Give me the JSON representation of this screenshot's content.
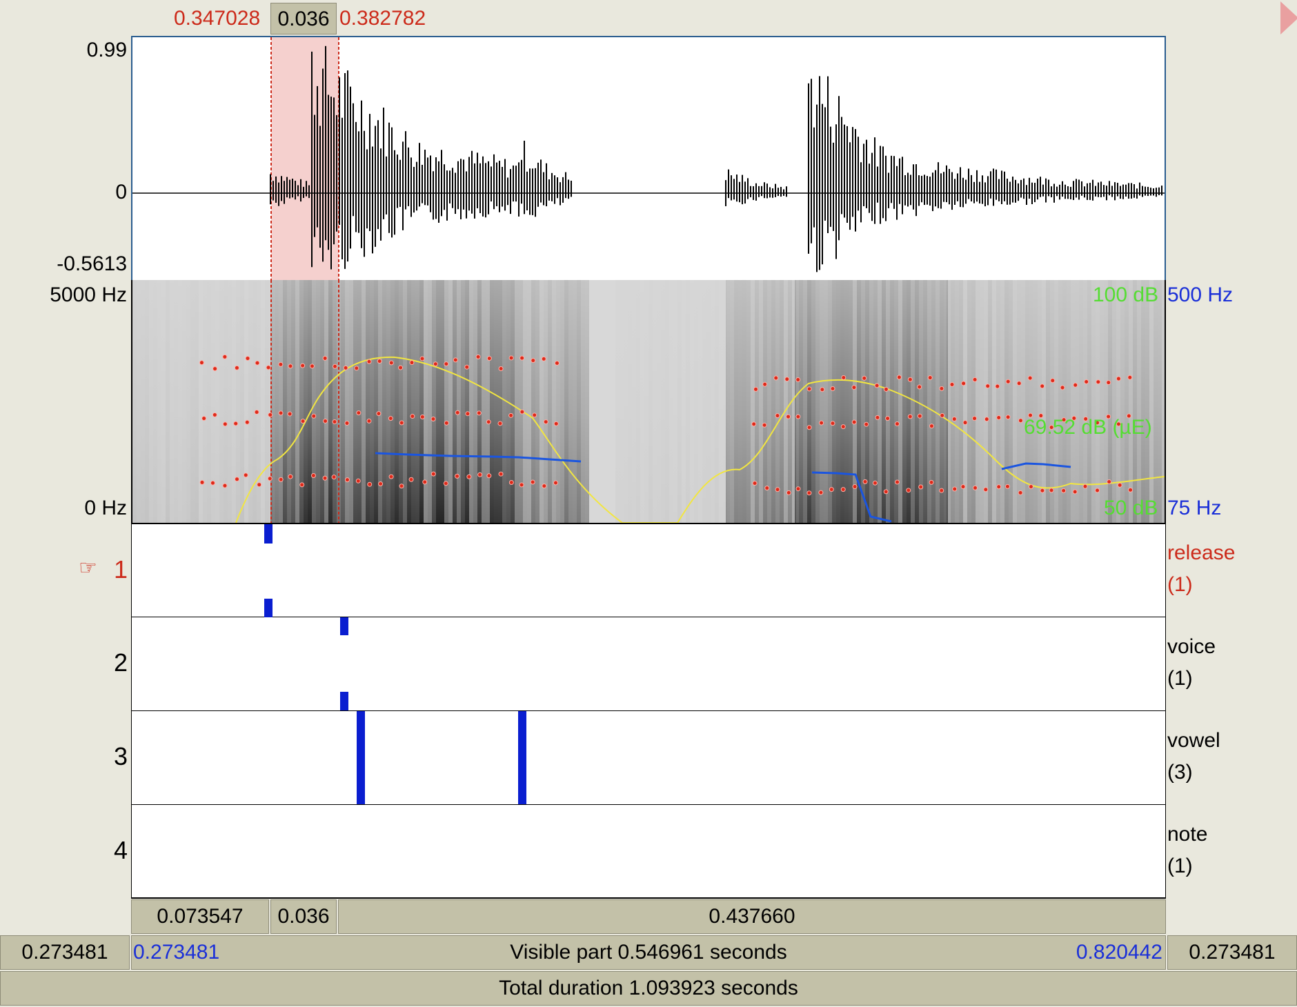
{
  "selection": {
    "start": "0.347028",
    "duration": "0.036",
    "end": "0.382782"
  },
  "waveform": {
    "max_label": "0.99",
    "zero_label": "0",
    "min_label": "-0.5613"
  },
  "spectrogram": {
    "freq_top": "5000 Hz",
    "freq_bottom": "0 Hz",
    "intensity_top": "100 dB",
    "intensity_mid": "69.52 dB (µE)",
    "intensity_bottom": "50 dB",
    "pitch_top": "500 Hz",
    "pitch_bottom": "75 Hz"
  },
  "tiers": [
    {
      "number": "1",
      "name": "release",
      "count": "(1)",
      "active": true,
      "pointer_icon": "☞"
    },
    {
      "number": "2",
      "name": "voice",
      "count": "(1)",
      "active": false
    },
    {
      "number": "3",
      "name": "vowel",
      "count": "(3)",
      "active": false
    },
    {
      "number": "4",
      "name": "note",
      "count": "(1)",
      "active": false
    }
  ],
  "duration_bar": {
    "before": "0.073547",
    "selected": "0.036",
    "after": "0.437660"
  },
  "visible_bar": {
    "left_outer": "0.273481",
    "left_inner": "0.273481",
    "center": "Visible part 0.546961 seconds",
    "right_inner": "0.820442",
    "right_outer": "0.273481"
  },
  "total_bar": {
    "text": "Total duration 1.093923 seconds"
  },
  "colors": {
    "selection_fill": "#f5d0ce",
    "formant_dots": "#dd2a1a",
    "pitch_line": "#1a55e0",
    "intensity_line": "#f2e640",
    "boundary_marks": "#0a1ed0"
  }
}
